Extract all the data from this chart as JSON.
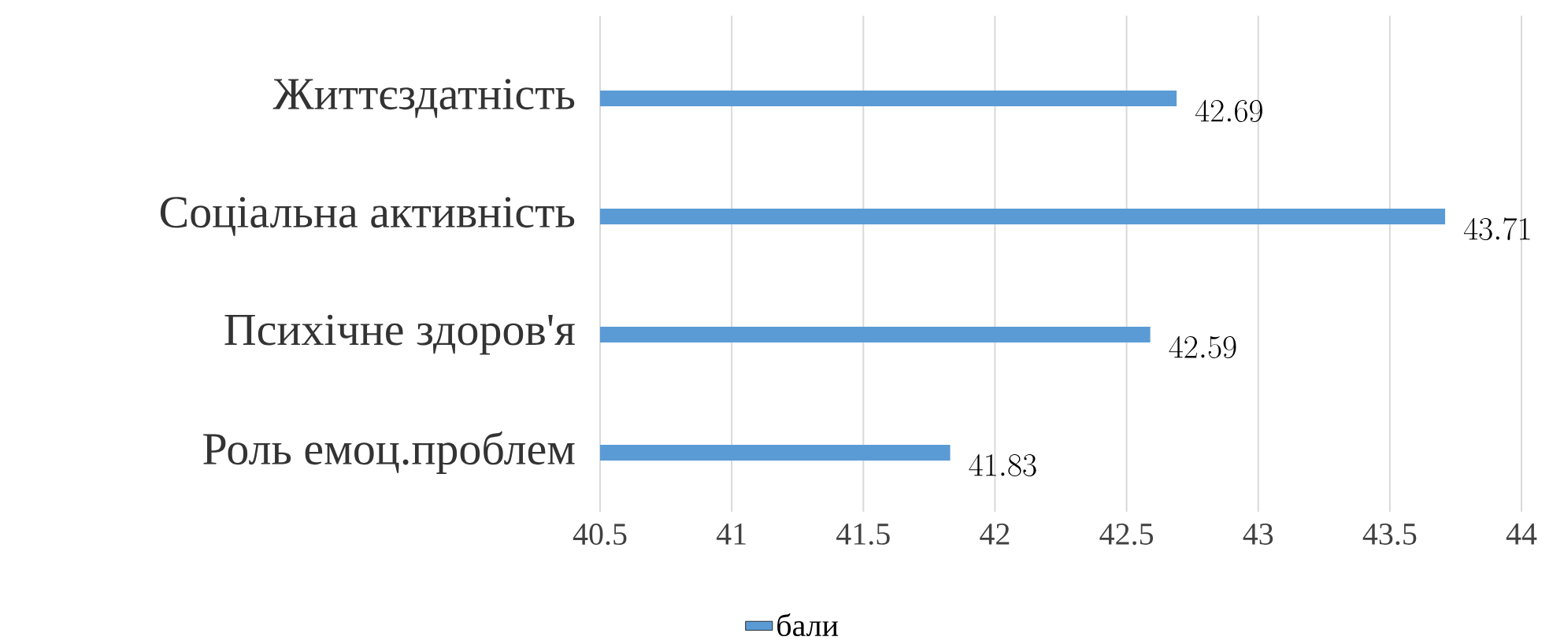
{
  "chart_data": {
    "type": "bar",
    "orientation": "horizontal",
    "categories": [
      "Життєздатність",
      "Соціальна активність",
      "Психічне здоров'я",
      "Роль емоц.проблем"
    ],
    "series": [
      {
        "name": "бали",
        "color": "#5b9bd5",
        "values": [
          42.69,
          43.71,
          42.59,
          41.83
        ]
      }
    ],
    "xlim": [
      40.5,
      44
    ],
    "xticks": [
      40.5,
      41,
      41.5,
      42,
      42.5,
      43,
      43.5,
      44
    ],
    "grid": "x",
    "legend": "bottom",
    "data_labels": true
  }
}
